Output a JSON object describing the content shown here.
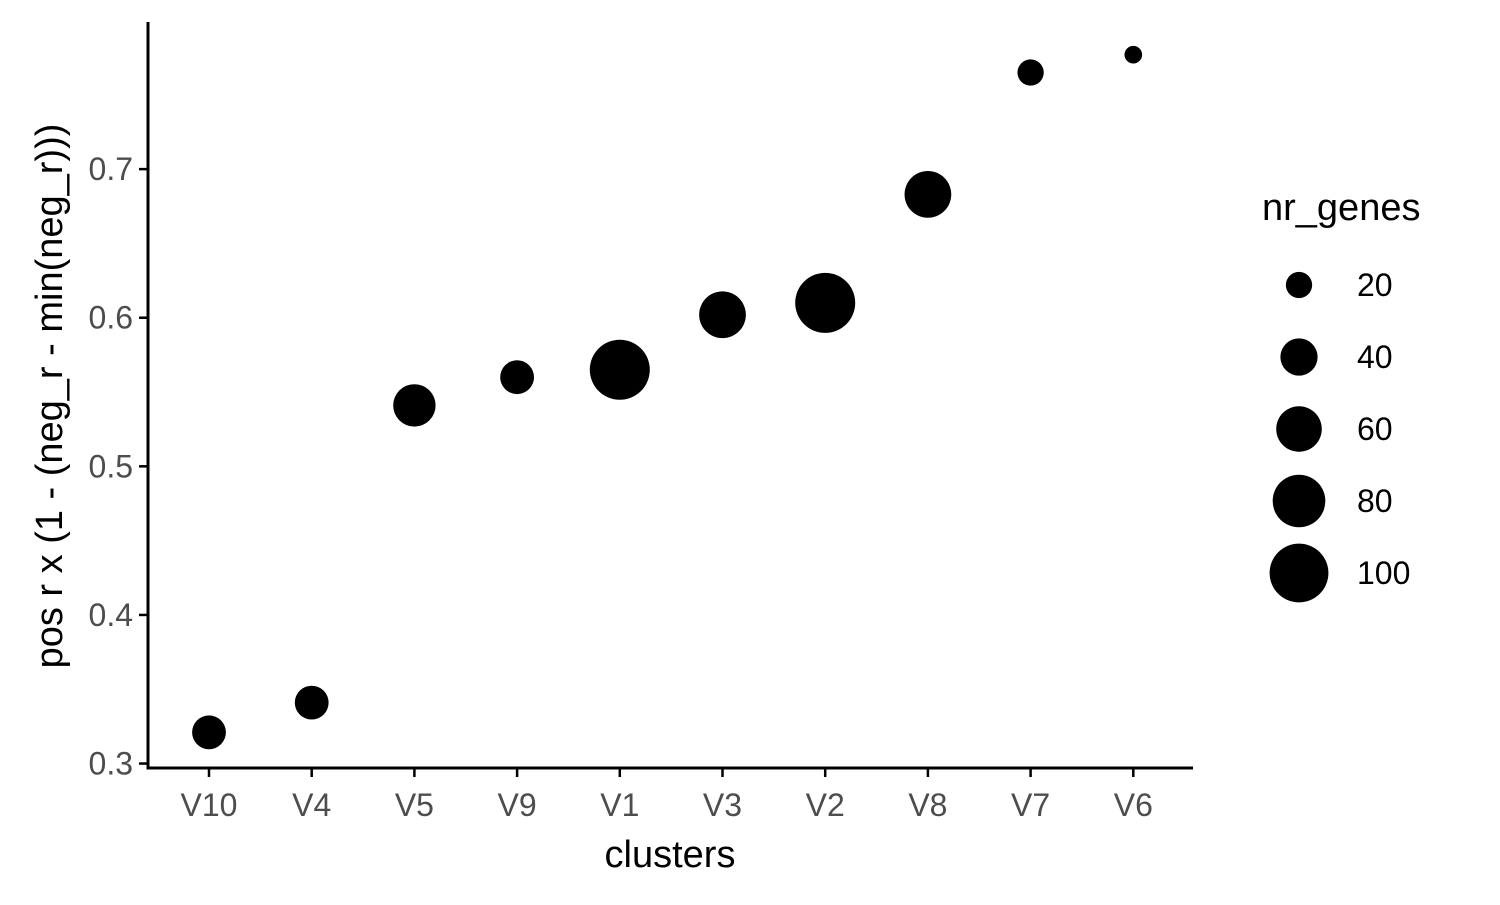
{
  "chart_data": {
    "type": "scatter",
    "xlabel": "clusters",
    "ylabel": "pos r x (1 - (neg_r - min(neg_r)))",
    "ylim": [
      0.297,
      0.799
    ],
    "yticks": [
      0.3,
      0.4,
      0.5,
      0.6,
      0.7
    ],
    "ytick_labels": [
      "0.3",
      "0.4",
      "0.5",
      "0.6",
      "0.7"
    ],
    "categories": [
      "V10",
      "V4",
      "V5",
      "V9",
      "V1",
      "V3",
      "V2",
      "V8",
      "V7",
      "V6"
    ],
    "values": [
      0.321,
      0.341,
      0.541,
      0.56,
      0.565,
      0.602,
      0.61,
      0.683,
      0.765,
      0.777
    ],
    "sizes": [
      33,
      33,
      52,
      33,
      104,
      63,
      104,
      63,
      20,
      9
    ],
    "size_legend": {
      "title": "nr_genes",
      "values": [
        20,
        40,
        60,
        80,
        100
      ],
      "labels": [
        "20",
        "40",
        "60",
        "80",
        "100"
      ]
    },
    "grid": false,
    "legend_position": "right",
    "point_color": "#000000"
  }
}
